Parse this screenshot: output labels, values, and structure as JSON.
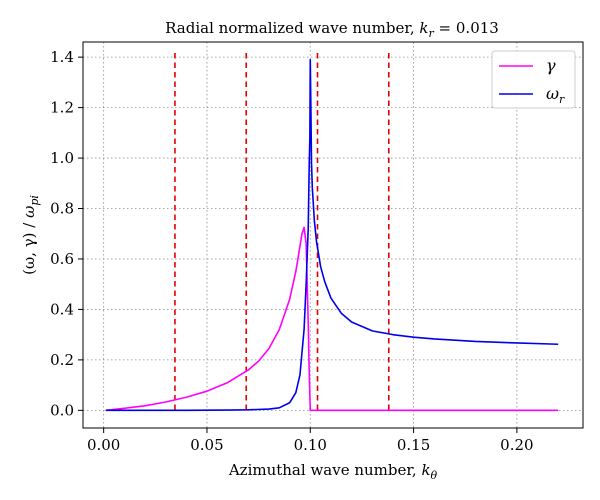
{
  "chart_data": {
    "type": "line",
    "title": "Radial normalized wave number, k_r = 0.013",
    "title_parts": {
      "prefix": "Radial normalized wave number, ",
      "var": "k",
      "sub": "r",
      "suffix": " = 0.013"
    },
    "xlabel": "Azimuthal wave number, k_θ",
    "xlabel_parts": {
      "prefix": "Azimuthal wave number, ",
      "var": "k",
      "sub": "θ"
    },
    "ylabel": "(ω, γ) / ω_pi",
    "ylabel_parts": {
      "prefix": "(ω, γ) / ",
      "var": "ω",
      "sub": "pi"
    },
    "xlim": [
      -0.01,
      0.232
    ],
    "ylim": [
      -0.07,
      1.46
    ],
    "xticks": [
      0.0,
      0.05,
      0.1,
      0.15,
      0.2
    ],
    "xtick_labels": [
      "0.00",
      "0.05",
      "0.10",
      "0.15",
      "0.20"
    ],
    "yticks": [
      0.0,
      0.2,
      0.4,
      0.6,
      0.8,
      1.0,
      1.2,
      1.4
    ],
    "ytick_labels": [
      "0.0",
      "0.2",
      "0.4",
      "0.6",
      "0.8",
      "1.0",
      "1.2",
      "1.4"
    ],
    "grid": true,
    "legend_position": "top-right",
    "vlines": {
      "x": [
        0.0345,
        0.069,
        0.1035,
        0.138
      ],
      "color": "#e00000",
      "style": "dashed"
    },
    "series": [
      {
        "name": "γ",
        "legend_label": {
          "var": "γ",
          "sub": ""
        },
        "color": "#ff00ff",
        "x": [
          0.001,
          0.01,
          0.02,
          0.03,
          0.04,
          0.05,
          0.06,
          0.07,
          0.075,
          0.08,
          0.085,
          0.09,
          0.093,
          0.095,
          0.096,
          0.097,
          0.098,
          0.099,
          0.0995,
          0.1,
          0.101,
          0.105,
          0.11,
          0.12,
          0.15,
          0.2,
          0.22
        ],
        "y": [
          0.0,
          0.008,
          0.018,
          0.033,
          0.052,
          0.076,
          0.11,
          0.16,
          0.195,
          0.245,
          0.32,
          0.44,
          0.55,
          0.65,
          0.7,
          0.725,
          0.66,
          0.35,
          0.15,
          0.0,
          0.0,
          0.0,
          0.0,
          0.0,
          0.0,
          0.0,
          0.0
        ]
      },
      {
        "name": "ω_r",
        "legend_label": {
          "var": "ω",
          "sub": "r"
        },
        "color": "#0000ee",
        "x": [
          0.001,
          0.02,
          0.04,
          0.06,
          0.07,
          0.08,
          0.085,
          0.09,
          0.093,
          0.095,
          0.097,
          0.098,
          0.099,
          0.0995,
          0.0998,
          0.1,
          0.1003,
          0.1006,
          0.101,
          0.102,
          0.103,
          0.105,
          0.107,
          0.11,
          0.115,
          0.12,
          0.13,
          0.14,
          0.15,
          0.16,
          0.18,
          0.2,
          0.22
        ],
        "y": [
          0.0,
          0.0,
          0.0,
          0.001,
          0.002,
          0.005,
          0.01,
          0.03,
          0.07,
          0.14,
          0.32,
          0.5,
          0.72,
          0.98,
          1.08,
          1.39,
          1.2,
          0.98,
          0.88,
          0.75,
          0.67,
          0.57,
          0.51,
          0.445,
          0.385,
          0.35,
          0.315,
          0.3,
          0.29,
          0.283,
          0.273,
          0.267,
          0.262
        ]
      }
    ]
  }
}
